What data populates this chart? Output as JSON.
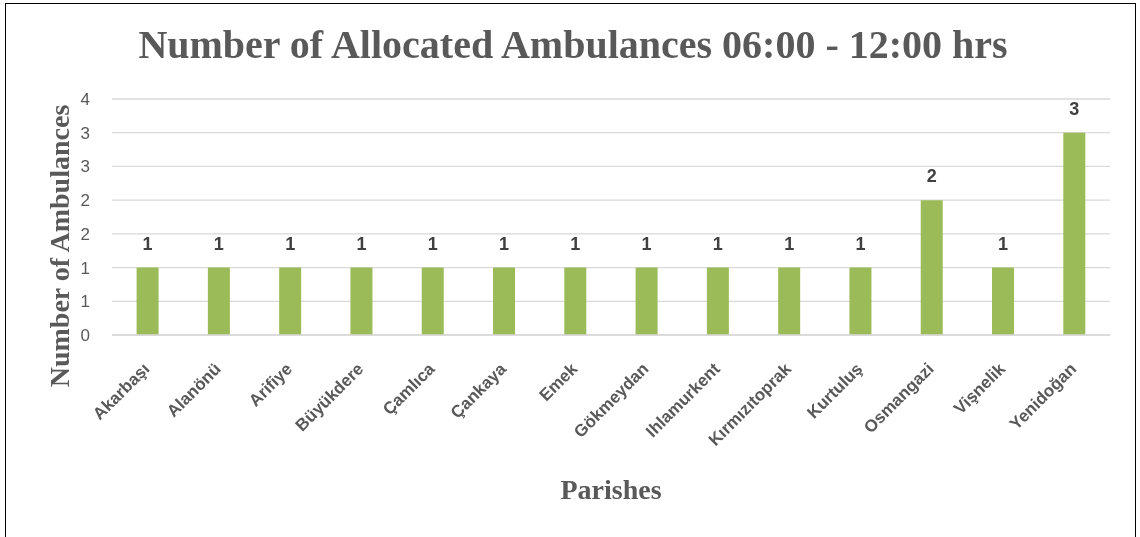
{
  "chart_data": {
    "type": "bar",
    "title": "Number of Allocated Ambulances 06:00 - 12:00 hrs",
    "xlabel": "Parishes",
    "ylabel": "Number of Ambulances",
    "categories": [
      "Akarbaşı",
      "Alanönü",
      "Arifiye",
      "Büyükdere",
      "Çamlıca",
      "Çankaya",
      "Emek",
      "Gökmeydan",
      "Ihlamurkent",
      "Kırmızıtoprak",
      "Kurtuluş",
      "Osmangazi",
      "Vişnelik",
      "Yenidoğan"
    ],
    "values": [
      1,
      1,
      1,
      1,
      1,
      1,
      1,
      1,
      1,
      1,
      1,
      2,
      1,
      3
    ],
    "color": "#9bbb59",
    "ylim": [
      0,
      3.5
    ],
    "yticks": [
      0,
      {
        "value": 0.5,
        "label": "1"
      },
      1,
      {
        "value": 1.5,
        "label": "2"
      },
      2,
      {
        "value": 2.5,
        "label": "3"
      },
      3,
      {
        "value": 3.5,
        "label": "4"
      }
    ],
    "grid": "y",
    "data_labels": true
  }
}
